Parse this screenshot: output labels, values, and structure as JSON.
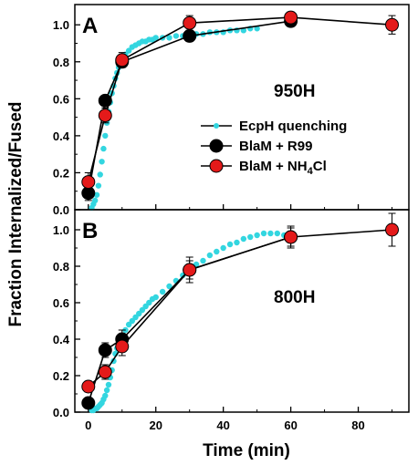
{
  "figure": {
    "ylabel": "Fraction Internalized/Fused",
    "xlabel": "Time (min)"
  },
  "legend": {
    "items": [
      {
        "label": "EcpH quenching",
        "color": "#33d6e0",
        "marker": "small-circle"
      },
      {
        "label": "BlaM + R99",
        "color": "#000000",
        "marker": "circle"
      },
      {
        "label": "BlaM + NH4Cl",
        "label_main": "BlaM + NH",
        "label_sub": "4",
        "label_tail": "Cl",
        "color": "#e41a1a",
        "marker": "circle"
      }
    ]
  },
  "chart_data": [
    {
      "type": "line",
      "panel": "A",
      "annotation": "950H",
      "xlim": [
        -4,
        95
      ],
      "ylim": [
        0,
        1.08
      ],
      "xticks": [
        0,
        20,
        40,
        60,
        80
      ],
      "yticks": [
        0.0,
        0.2,
        0.4,
        0.6,
        0.8,
        1.0
      ],
      "ytick_labels": [
        "0.0",
        "0.2",
        "0.4",
        "0.6",
        "0.8",
        "1.0"
      ],
      "series": [
        {
          "name": "EcpH quenching",
          "color": "#33d6e0",
          "x": [
            1.0,
            1.5,
            2.0,
            2.5,
            3.0,
            3.5,
            4.0,
            4.5,
            5.0,
            5.5,
            6.0,
            6.5,
            7.0,
            7.5,
            8.0,
            8.5,
            9.0,
            9.5,
            10,
            11,
            12,
            13,
            14,
            15,
            16,
            17,
            18,
            19,
            20,
            22,
            24,
            26,
            28,
            30,
            32,
            34,
            36,
            38,
            40,
            42,
            44,
            46,
            48,
            50
          ],
          "y": [
            0.01,
            0.03,
            0.05,
            0.08,
            0.13,
            0.19,
            0.26,
            0.33,
            0.4,
            0.47,
            0.53,
            0.58,
            0.63,
            0.67,
            0.71,
            0.74,
            0.77,
            0.79,
            0.81,
            0.84,
            0.86,
            0.88,
            0.89,
            0.9,
            0.91,
            0.91,
            0.92,
            0.92,
            0.93,
            0.93,
            0.93,
            0.94,
            0.94,
            0.95,
            0.95,
            0.95,
            0.96,
            0.96,
            0.96,
            0.97,
            0.97,
            0.97,
            0.98,
            0.98
          ]
        },
        {
          "name": "BlaM + R99",
          "color": "#000000",
          "x": [
            0,
            5,
            10,
            30,
            60
          ],
          "y": [
            0.09,
            0.59,
            0.8,
            0.94,
            1.02
          ],
          "yerr": [
            0.04,
            0.02,
            0.03,
            0.02,
            0.02
          ]
        },
        {
          "name": "BlaM + NH4Cl",
          "color": "#e41a1a",
          "x": [
            0,
            5,
            10,
            30,
            60,
            90
          ],
          "y": [
            0.15,
            0.51,
            0.81,
            1.01,
            1.04,
            1.0
          ],
          "yerr": [
            0.05,
            0.04,
            0.04,
            0.04,
            0.03,
            0.05
          ]
        }
      ]
    },
    {
      "type": "line",
      "panel": "B",
      "annotation": "800H",
      "xlim": [
        -4,
        95
      ],
      "ylim": [
        0,
        1.08
      ],
      "xticks": [
        0,
        20,
        40,
        60,
        80
      ],
      "xtick_labels": [
        "0",
        "20",
        "40",
        "60",
        "80"
      ],
      "yticks": [
        0.0,
        0.2,
        0.4,
        0.6,
        0.8,
        1.0
      ],
      "ytick_labels": [
        "0.0",
        "0.2",
        "0.4",
        "0.6",
        "0.8",
        "1.0"
      ],
      "series": [
        {
          "name": "EcpH quenching",
          "color": "#33d6e0",
          "x": [
            1.0,
            1.5,
            2.0,
            2.5,
            3.0,
            3.5,
            4.0,
            4.5,
            5.0,
            5.5,
            6.0,
            6.5,
            7.0,
            7.5,
            8.0,
            8.5,
            9.0,
            9.5,
            10,
            11,
            12,
            13,
            14,
            15,
            16,
            17,
            18,
            19,
            20,
            22,
            24,
            26,
            28,
            30,
            32,
            34,
            36,
            38,
            40,
            42,
            44,
            46,
            48,
            50,
            52,
            54,
            56,
            58,
            60
          ],
          "y": [
            0.01,
            0.01,
            0.02,
            0.02,
            0.03,
            0.04,
            0.05,
            0.07,
            0.09,
            0.12,
            0.15,
            0.19,
            0.23,
            0.28,
            0.32,
            0.35,
            0.38,
            0.4,
            0.42,
            0.45,
            0.48,
            0.5,
            0.52,
            0.54,
            0.56,
            0.58,
            0.6,
            0.62,
            0.63,
            0.66,
            0.69,
            0.72,
            0.75,
            0.78,
            0.81,
            0.83,
            0.86,
            0.88,
            0.9,
            0.92,
            0.93,
            0.95,
            0.96,
            0.97,
            0.98,
            0.98,
            0.98,
            0.97,
            0.97
          ]
        },
        {
          "name": "BlaM + R99",
          "color": "#000000",
          "x": [
            0,
            5,
            10,
            30,
            60
          ],
          "y": [
            0.05,
            0.34,
            0.4,
            0.78,
            0.96
          ],
          "yerr": [
            0.02,
            0.04,
            0.05,
            0.07,
            0.06
          ]
        },
        {
          "name": "BlaM + NH4Cl",
          "color": "#e41a1a",
          "x": [
            0,
            5,
            10,
            30,
            60,
            90
          ],
          "y": [
            0.14,
            0.22,
            0.36,
            0.78,
            0.96,
            1.0
          ],
          "yerr": [
            0.03,
            0.04,
            0.05,
            0.05,
            0.05,
            0.09
          ]
        }
      ]
    }
  ]
}
